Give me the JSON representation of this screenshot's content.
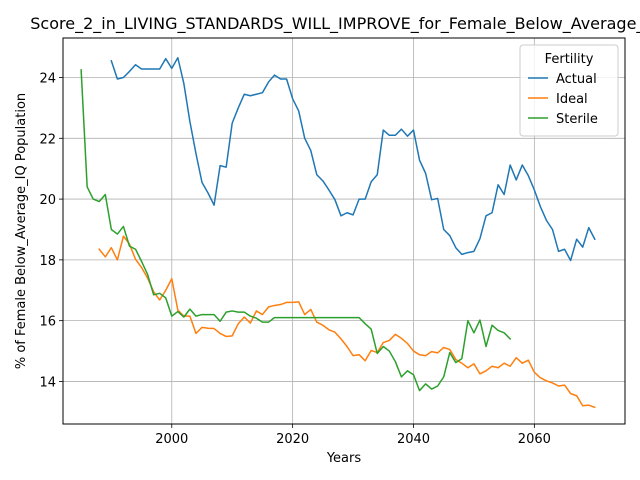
{
  "chart_data": {
    "type": "line",
    "title": "Score_2_in_LIVING_STANDARDS_WILL_IMPROVE_for_Female_Below_Average_IQ",
    "xlabel": "Years",
    "ylabel": "% of Female Below_Average_IQ Population",
    "xlim": [
      1982,
      2075
    ],
    "ylim": [
      12.6,
      25.3
    ],
    "xticks": [
      2000,
      2020,
      2040,
      2060
    ],
    "yticks": [
      14,
      16,
      18,
      20,
      22,
      24
    ],
    "grid": true,
    "legend": {
      "title": "Fertility",
      "placement": "top-right"
    },
    "series": [
      {
        "name": "Actual",
        "color": "#1f77b4",
        "x": [
          1990,
          1991,
          1992,
          1993,
          1994,
          1995,
          1996,
          1997,
          1998,
          1999,
          2000,
          2001,
          2002,
          2003,
          2004,
          2005,
          2006,
          2007,
          2008,
          2009,
          2010,
          2011,
          2012,
          2013,
          2014,
          2015,
          2016,
          2017,
          2018,
          2019,
          2020,
          2021,
          2022,
          2023,
          2024,
          2025,
          2026,
          2027,
          2028,
          2029,
          2030,
          2031,
          2032,
          2033,
          2034,
          2035,
          2036,
          2037,
          2038,
          2039,
          2040,
          2041,
          2042,
          2043,
          2044,
          2045,
          2046,
          2047,
          2048,
          2049,
          2050,
          2051,
          2052,
          2053,
          2054,
          2055,
          2056,
          2057,
          2058,
          2059,
          2060,
          2061,
          2062,
          2063,
          2064,
          2065,
          2066,
          2067,
          2068,
          2069,
          2070
        ],
        "y": [
          24.55,
          23.95,
          24.0,
          24.2,
          24.42,
          24.28,
          24.28,
          24.28,
          24.28,
          24.62,
          24.3,
          24.65,
          23.8,
          22.55,
          21.5,
          20.55,
          20.2,
          19.8,
          21.1,
          21.05,
          22.5,
          23.0,
          23.45,
          23.4,
          23.45,
          23.5,
          23.85,
          24.08,
          23.95,
          23.95,
          23.3,
          22.9,
          22.0,
          21.6,
          20.8,
          20.6,
          20.3,
          19.98,
          19.45,
          19.55,
          19.48,
          20.0,
          20.0,
          20.57,
          20.8,
          22.27,
          22.1,
          22.1,
          22.3,
          22.07,
          22.27,
          21.28,
          20.85,
          19.98,
          20.02,
          19.0,
          18.8,
          18.4,
          18.18,
          18.24,
          18.28,
          18.7,
          19.45,
          19.55,
          20.47,
          20.15,
          21.12,
          20.63,
          21.12,
          20.77,
          20.3,
          19.75,
          19.3,
          19.0,
          18.28,
          18.35,
          17.98,
          18.68,
          18.42,
          19.06,
          18.68
        ]
      },
      {
        "name": "Ideal",
        "color": "#ff7f0e",
        "x": [
          1988,
          1989,
          1990,
          1991,
          1992,
          1993,
          1994,
          1995,
          1996,
          1997,
          1998,
          1999,
          2000,
          2001,
          2002,
          2003,
          2004,
          2005,
          2006,
          2007,
          2008,
          2009,
          2010,
          2011,
          2012,
          2013,
          2014,
          2015,
          2016,
          2017,
          2018,
          2019,
          2020,
          2021,
          2022,
          2023,
          2024,
          2025,
          2026,
          2027,
          2028,
          2029,
          2030,
          2031,
          2032,
          2033,
          2034,
          2035,
          2036,
          2037,
          2038,
          2039,
          2040,
          2041,
          2042,
          2043,
          2044,
          2045,
          2046,
          2047,
          2048,
          2049,
          2050,
          2051,
          2052,
          2053,
          2054,
          2055,
          2056,
          2057,
          2058,
          2059,
          2060,
          2061,
          2062,
          2063,
          2064,
          2065,
          2066,
          2067,
          2068,
          2069,
          2070
        ],
        "y": [
          18.35,
          18.1,
          18.4,
          18.0,
          18.78,
          18.52,
          18.02,
          17.75,
          17.4,
          16.95,
          16.68,
          17.0,
          17.38,
          16.35,
          16.15,
          16.15,
          15.58,
          15.78,
          15.75,
          15.74,
          15.58,
          15.48,
          15.5,
          15.9,
          16.12,
          15.92,
          16.32,
          16.2,
          16.45,
          16.5,
          16.53,
          16.6,
          16.6,
          16.62,
          16.2,
          16.37,
          15.95,
          15.85,
          15.7,
          15.62,
          15.4,
          15.15,
          14.85,
          14.88,
          14.68,
          15.02,
          14.95,
          15.28,
          15.35,
          15.55,
          15.42,
          15.25,
          15.0,
          14.88,
          14.85,
          14.98,
          14.94,
          15.12,
          15.05,
          14.72,
          14.6,
          14.45,
          14.58,
          14.25,
          14.35,
          14.5,
          14.45,
          14.6,
          14.5,
          14.78,
          14.6,
          14.7,
          14.3,
          14.12,
          14.02,
          13.95,
          13.85,
          13.88,
          13.6,
          13.53,
          13.2,
          13.22,
          13.15
        ]
      },
      {
        "name": "Sterile",
        "color": "#2ca02c",
        "x": [
          1985,
          1986,
          1987,
          1988,
          1989,
          1990,
          1991,
          1992,
          1993,
          1994,
          1995,
          1996,
          1997,
          1998,
          1999,
          2000,
          2001,
          2002,
          2003,
          2004,
          2005,
          2006,
          2007,
          2008,
          2009,
          2010,
          2011,
          2012,
          2013,
          2014,
          2015,
          2016,
          2017,
          2018,
          2019,
          2020,
          2021,
          2022,
          2023,
          2024,
          2025,
          2026,
          2027,
          2028,
          2029,
          2030,
          2031,
          2032,
          2033,
          2034,
          2035,
          2036,
          2037,
          2038,
          2039,
          2040,
          2041,
          2042,
          2043,
          2044,
          2045,
          2046,
          2047,
          2048,
          2049,
          2050,
          2051,
          2052,
          2053,
          2054,
          2055,
          2056
        ],
        "y": [
          24.25,
          20.4,
          20.0,
          19.92,
          20.15,
          19.0,
          18.85,
          19.1,
          18.45,
          18.35,
          17.95,
          17.52,
          16.85,
          16.9,
          16.75,
          16.15,
          16.3,
          16.12,
          16.38,
          16.15,
          16.2,
          16.2,
          16.2,
          15.98,
          16.28,
          16.32,
          16.28,
          16.28,
          16.15,
          16.08,
          15.95,
          15.95,
          16.1,
          16.1,
          16.1,
          16.1,
          16.1,
          16.1,
          16.1,
          16.1,
          16.1,
          16.1,
          16.1,
          16.1,
          16.1,
          16.1,
          16.1,
          15.9,
          15.72,
          14.92,
          15.15,
          15.0,
          14.65,
          14.15,
          14.35,
          14.22,
          13.7,
          13.92,
          13.75,
          13.85,
          14.15,
          14.95,
          14.62,
          14.75,
          16.0,
          15.6,
          16.02,
          15.15,
          15.85,
          15.68,
          15.6,
          15.4
        ]
      }
    ]
  }
}
